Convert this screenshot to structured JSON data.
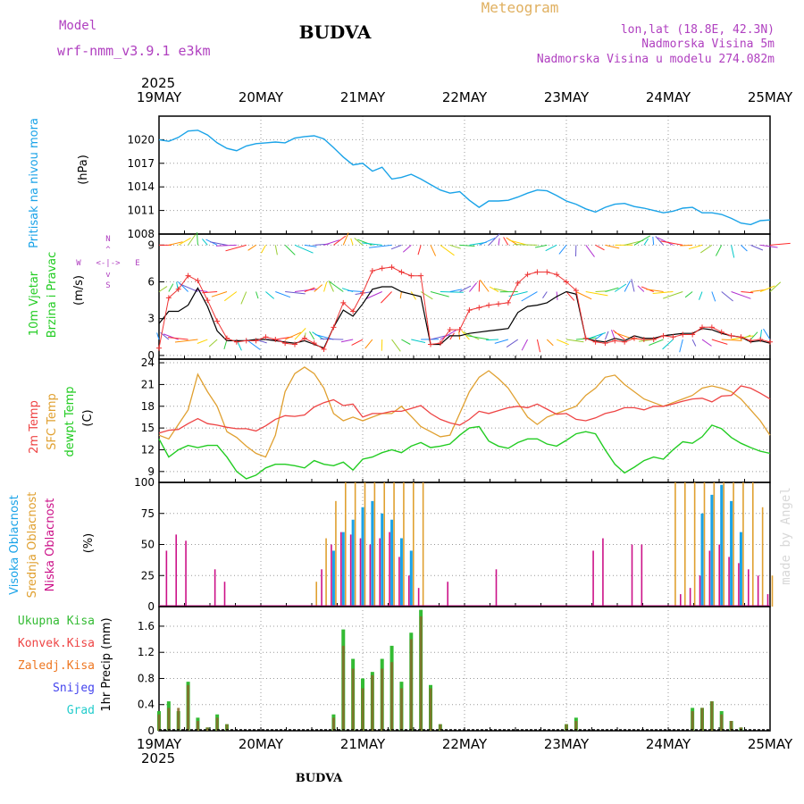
{
  "header": {
    "model_label": "Model",
    "model_name": "wrf-nmm_v3.9.1 e3km",
    "location": "BUDVA",
    "subtitle": "Meteogram",
    "lonlat": "lon,lat (18.8E, 42.3N)",
    "altitude": "Nadmorska Visina 5m",
    "model_altitude": "Nadmorska Visina u modelu 274.082m",
    "footer_location": "BUDVA",
    "watermark": "made by Angel"
  },
  "colors": {
    "pressure": "#1aa3e8",
    "wind_speed": "#000000",
    "wind_gust": "#ee3333",
    "temp2m": "#ee4444",
    "sfc_temp": "#e0a030",
    "dewpt": "#22cc22",
    "cloud_high": "#1aa3e8",
    "cloud_mid": "#e0a030",
    "cloud_low": "#cc1188",
    "precip_total": "#33bb33",
    "precip_conv": "#ee4444",
    "precip_frozen": "#ee7722",
    "precip_snow": "#4444ee",
    "precip_graupel": "#22cccc"
  },
  "chart_data": [
    {
      "type": "line",
      "name": "pressure",
      "ylabel": "Pritisak na nivou mora",
      "unit": "(hPa)",
      "ylim": [
        1008,
        1023
      ],
      "yticks": [
        1008,
        1011,
        1014,
        1017,
        1020
      ],
      "x_day_start": 19,
      "top_year": "2025",
      "x_labels": [
        "19MAY",
        "20MAY",
        "21MAY",
        "22MAY",
        "23MAY",
        "24MAY",
        "25MAY"
      ],
      "bottom_year": "2025",
      "series": [
        {
          "name": "SLP",
          "values": [
            1020.0,
            1019.8,
            1020.3,
            1021.1,
            1021.2,
            1020.6,
            1019.6,
            1018.9,
            1018.6,
            1019.2,
            1019.5,
            1019.6,
            1019.7,
            1019.6,
            1020.2,
            1020.4,
            1020.5,
            1020.1,
            1019.0,
            1017.8,
            1016.8,
            1017.0,
            1016.0,
            1016.5,
            1015.0,
            1015.2,
            1015.6,
            1015.0,
            1014.3,
            1013.6,
            1013.2,
            1013.4,
            1012.3,
            1011.4,
            1012.2,
            1012.2,
            1012.3,
            1012.7,
            1013.2,
            1013.6,
            1013.5,
            1012.9,
            1012.2,
            1011.8,
            1011.2,
            1010.8,
            1011.4,
            1011.8,
            1011.9,
            1011.5,
            1011.3,
            1011.0,
            1010.7,
            1010.9,
            1011.3,
            1011.4,
            1010.7,
            1010.7,
            1010.5,
            1010.0,
            1009.4,
            1009.2,
            1009.7,
            1009.8
          ]
        }
      ]
    },
    {
      "type": "line",
      "name": "wind",
      "ylabel": "10m Vjetar",
      "ylabel2": "Brzina i Pravac",
      "unit": "(m/s)",
      "compass": {
        "n": "N",
        "s": "S",
        "w": "W",
        "e": "E"
      },
      "ylim": [
        -0.3,
        9.9
      ],
      "yticks": [
        0,
        3,
        6,
        9
      ],
      "series": [
        {
          "name": "wind_speed",
          "values": [
            2.6,
            3.6,
            3.6,
            4.1,
            5.5,
            4.0,
            2.0,
            1.2,
            1.2,
            1.2,
            1.3,
            1.3,
            1.2,
            1.1,
            1.0,
            1.2,
            0.9,
            0.6,
            2.3,
            3.7,
            3.2,
            4.2,
            5.4,
            5.6,
            5.6,
            5.2,
            5.0,
            4.8,
            0.9,
            0.9,
            1.6,
            1.6,
            1.8,
            1.9,
            2.0,
            2.1,
            2.2,
            3.5,
            4.0,
            4.1,
            4.3,
            4.8,
            5.2,
            5.0,
            1.4,
            1.2,
            1.1,
            1.4,
            1.2,
            1.6,
            1.4,
            1.4,
            1.6,
            1.7,
            1.8,
            1.8,
            2.2,
            2.1,
            1.8,
            1.6,
            1.5,
            1.1,
            1.2,
            1.0
          ]
        },
        {
          "name": "wind_gust",
          "values": [
            0.6,
            4.7,
            5.4,
            6.5,
            6.1,
            4.5,
            2.8,
            1.4,
            1.1,
            1.2,
            1.2,
            1.5,
            1.3,
            1.0,
            0.9,
            1.4,
            1.0,
            0.5,
            2.3,
            4.3,
            3.6,
            5.1,
            6.9,
            7.1,
            7.2,
            6.8,
            6.5,
            6.5,
            0.9,
            1.0,
            2.1,
            2.1,
            3.7,
            3.9,
            4.1,
            4.2,
            4.3,
            5.9,
            6.6,
            6.8,
            6.8,
            6.6,
            6.0,
            5.3,
            1.4,
            1.1,
            1.0,
            1.2,
            1.1,
            1.4,
            1.3,
            1.3,
            1.6,
            1.5,
            1.7,
            1.7,
            2.3,
            2.3,
            1.9,
            1.6,
            1.5,
            1.2,
            1.3,
            1.1
          ]
        }
      ]
    },
    {
      "type": "line",
      "name": "temperature",
      "ylabels": [
        "2m Temp",
        "SFC Temp",
        "dewpt Temp"
      ],
      "unit": "(C)",
      "ylim": [
        7.5,
        24.5
      ],
      "yticks": [
        9,
        12,
        15,
        18,
        21,
        24
      ],
      "series": [
        {
          "name": "temp2m",
          "values": [
            14.3,
            14.7,
            14.8,
            15.6,
            16.3,
            15.6,
            15.4,
            15.1,
            14.9,
            14.9,
            14.6,
            15.3,
            16.2,
            16.7,
            16.6,
            16.8,
            17.9,
            18.5,
            18.9,
            18.1,
            18.3,
            16.5,
            17.0,
            17.0,
            17.3,
            17.3,
            17.7,
            18.1,
            17.0,
            16.2,
            15.7,
            15.4,
            16.2,
            17.3,
            17.0,
            17.4,
            17.8,
            18.0,
            17.8,
            18.3,
            17.6,
            16.9,
            17.0,
            16.2,
            16.0,
            16.4,
            17.0,
            17.3,
            17.8,
            17.8,
            17.5,
            18.0,
            18.0,
            18.3,
            18.7,
            19.0,
            19.1,
            18.6,
            19.4,
            19.5,
            20.8,
            20.5,
            19.8,
            19.0
          ]
        },
        {
          "name": "sfc_temp",
          "values": [
            14.0,
            13.5,
            15.5,
            17.5,
            22.4,
            20.0,
            18.0,
            14.5,
            13.7,
            12.5,
            11.5,
            11.0,
            14.0,
            20.0,
            22.5,
            23.4,
            22.5,
            20.5,
            17.0,
            16.0,
            16.5,
            16.0,
            16.5,
            17.0,
            17.0,
            18.0,
            16.6,
            15.2,
            14.5,
            13.8,
            14.0,
            17.0,
            20.0,
            22.0,
            22.9,
            21.8,
            20.5,
            18.5,
            16.5,
            15.5,
            16.5,
            17.0,
            17.5,
            18.0,
            19.5,
            20.5,
            22.0,
            22.3,
            21.0,
            20.0,
            19.0,
            18.5,
            18.0,
            18.5,
            19.0,
            19.5,
            20.5,
            20.8,
            20.5,
            20.0,
            19.0,
            17.5,
            16.0,
            14.0
          ]
        },
        {
          "name": "dewpt",
          "values": [
            13.5,
            11.0,
            12.0,
            12.6,
            12.3,
            12.6,
            12.6,
            11.0,
            9.0,
            8.0,
            8.5,
            9.5,
            10.0,
            10.0,
            9.8,
            9.5,
            10.5,
            10.0,
            9.8,
            10.3,
            9.2,
            10.7,
            11.0,
            11.6,
            12.0,
            11.6,
            12.5,
            13.0,
            12.3,
            12.5,
            12.8,
            14.0,
            15.0,
            15.2,
            13.2,
            12.5,
            12.2,
            13.0,
            13.5,
            13.5,
            12.8,
            12.5,
            13.3,
            14.2,
            14.5,
            14.2,
            12.0,
            10.0,
            8.8,
            9.6,
            10.5,
            11.0,
            10.7,
            12.0,
            13.1,
            12.9,
            13.8,
            15.4,
            14.9,
            13.7,
            12.9,
            12.3,
            11.8,
            11.5
          ]
        }
      ]
    },
    {
      "type": "bar",
      "name": "clouds",
      "ylabels": [
        "Visoka Oblacnost",
        "Srednja Oblacnost",
        "Niska Oblacnost"
      ],
      "unit": "(%)",
      "ylim": [
        0,
        100
      ],
      "yticks": [
        0,
        25,
        50,
        75,
        100
      ],
      "series": [
        {
          "name": "high",
          "values": [
            0,
            0,
            0,
            0,
            0,
            0,
            0,
            0,
            0,
            0,
            0,
            0,
            0,
            0,
            0,
            0,
            0,
            0,
            45,
            60,
            70,
            80,
            85,
            75,
            70,
            55,
            45,
            0,
            0,
            0,
            0,
            0,
            0,
            0,
            0,
            0,
            0,
            0,
            0,
            0,
            0,
            0,
            0,
            0,
            0,
            0,
            0,
            0,
            0,
            0,
            0,
            0,
            0,
            0,
            0,
            0,
            75,
            90,
            98,
            85,
            60,
            0,
            0,
            0
          ]
        },
        {
          "name": "mid",
          "values": [
            0,
            0,
            0,
            0,
            0,
            0,
            0,
            0,
            0,
            0,
            0,
            0,
            0,
            0,
            0,
            0,
            20,
            55,
            85,
            100,
            100,
            100,
            100,
            100,
            100,
            100,
            100,
            100,
            0,
            0,
            0,
            0,
            0,
            0,
            0,
            0,
            0,
            0,
            0,
            0,
            0,
            0,
            0,
            0,
            0,
            0,
            0,
            0,
            0,
            0,
            0,
            0,
            0,
            100,
            100,
            100,
            100,
            100,
            100,
            100,
            100,
            100,
            80,
            25
          ]
        },
        {
          "name": "low",
          "values": [
            0,
            45,
            58,
            53,
            0,
            0,
            30,
            20,
            0,
            0,
            0,
            0,
            0,
            0,
            0,
            0,
            0,
            30,
            50,
            60,
            58,
            55,
            50,
            55,
            60,
            40,
            25,
            15,
            0,
            0,
            20,
            0,
            0,
            0,
            0,
            30,
            0,
            0,
            0,
            0,
            0,
            0,
            0,
            0,
            0,
            45,
            55,
            0,
            0,
            50,
            50,
            0,
            0,
            0,
            10,
            15,
            25,
            45,
            50,
            40,
            35,
            30,
            25,
            10
          ]
        }
      ]
    },
    {
      "type": "bar",
      "name": "precipitation",
      "ylabels": [
        "Ukupna Kisa",
        "Konvek.Kisa",
        "Zaledj.Kisa",
        "Snijeg",
        "Grad"
      ],
      "ylabel": "1hr Precip (mm)",
      "ylim": [
        0,
        1.9
      ],
      "yticks": [
        0,
        0.4,
        0.8,
        1.2,
        1.6
      ],
      "series": [
        {
          "name": "total",
          "values": [
            0.3,
            0.45,
            0.3,
            0.75,
            0.2,
            0.05,
            0.25,
            0.1,
            0,
            0,
            0,
            0,
            0,
            0,
            0,
            0,
            0,
            0,
            0.25,
            1.55,
            1.1,
            0.8,
            0.9,
            1.1,
            1.3,
            0.75,
            1.5,
            1.85,
            0.7,
            0.1,
            0,
            0,
            0,
            0,
            0,
            0,
            0,
            0,
            0,
            0,
            0,
            0,
            0.1,
            0.2,
            0,
            0,
            0,
            0,
            0,
            0,
            0,
            0,
            0,
            0,
            0,
            0.35,
            0.35,
            0.45,
            0.3,
            0.15,
            0.05,
            0,
            0,
            0
          ]
        },
        {
          "name": "convective",
          "values": [
            0.25,
            0.35,
            0.35,
            0.7,
            0.15,
            0.05,
            0.2,
            0.1,
            0,
            0,
            0,
            0,
            0,
            0,
            0,
            0,
            0,
            0,
            0.2,
            1.3,
            0.95,
            0.65,
            0.85,
            0.95,
            1.05,
            0.65,
            1.4,
            1.75,
            0.65,
            0.1,
            0,
            0,
            0,
            0,
            0,
            0,
            0,
            0,
            0,
            0,
            0,
            0,
            0.1,
            0.15,
            0,
            0,
            0,
            0,
            0,
            0,
            0,
            0,
            0,
            0,
            0,
            0.3,
            0.35,
            0.45,
            0.25,
            0.15,
            0.05,
            0,
            0,
            0
          ]
        }
      ]
    }
  ]
}
